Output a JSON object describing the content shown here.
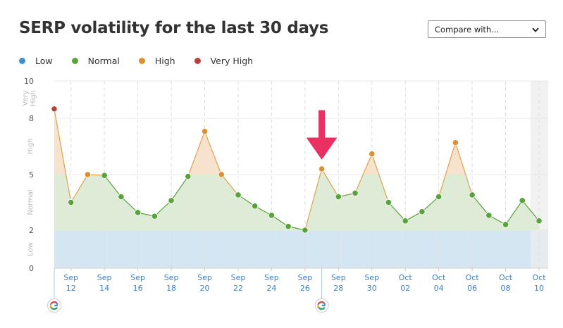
{
  "page": {
    "title": "SERP volatility for the last 30 days",
    "compare_label": "Compare with..."
  },
  "legend": [
    {
      "label": "Low",
      "color": "#3c8fd0"
    },
    {
      "label": "Normal",
      "color": "#5aa33c"
    },
    {
      "label": "High",
      "color": "#e08f2c"
    },
    {
      "label": "Very High",
      "color": "#b8423a"
    }
  ],
  "chart_data": {
    "type": "area",
    "title": "SERP volatility for the last 30 days",
    "ylim": [
      0,
      10
    ],
    "y_ticks": [
      "0",
      "2",
      "5",
      "8",
      "10"
    ],
    "bands": [
      {
        "label": "Low",
        "from": 0,
        "to": 2,
        "color": "#d5e6f3"
      },
      {
        "label": "Normal",
        "from": 2,
        "to": 5,
        "color": "#deebd6"
      },
      {
        "label": "High",
        "from": 5,
        "to": 8,
        "color": "#f7e3cd"
      },
      {
        "label": "Very High",
        "from": 8,
        "to": 10,
        "color": "#f0d8d6"
      }
    ],
    "x_tick_labels": [
      [
        "Sep",
        "12"
      ],
      [
        "Sep",
        "14"
      ],
      [
        "Sep",
        "16"
      ],
      [
        "Sep",
        "18"
      ],
      [
        "Sep",
        "20"
      ],
      [
        "Sep",
        "22"
      ],
      [
        "Sep",
        "24"
      ],
      [
        "Sep",
        "26"
      ],
      [
        "Sep",
        "28"
      ],
      [
        "Sep",
        "30"
      ],
      [
        "Oct",
        "02"
      ],
      [
        "Oct",
        "04"
      ],
      [
        "Oct",
        "06"
      ],
      [
        "Oct",
        "08"
      ],
      [
        "Oct",
        "10"
      ]
    ],
    "x": [
      "Sep 11",
      "Sep 12",
      "Sep 13",
      "Sep 14",
      "Sep 15",
      "Sep 16",
      "Sep 17",
      "Sep 18",
      "Sep 19",
      "Sep 20",
      "Sep 21",
      "Sep 22",
      "Sep 23",
      "Sep 24",
      "Sep 25",
      "Sep 26",
      "Sep 27",
      "Sep 28",
      "Sep 29",
      "Sep 30",
      "Oct 01",
      "Oct 02",
      "Oct 03",
      "Oct 04",
      "Oct 05",
      "Oct 06",
      "Oct 07",
      "Oct 08",
      "Oct 09",
      "Oct 10"
    ],
    "series": [
      {
        "values": [
          8.5,
          3.5,
          5.0,
          4.95,
          3.8,
          2.95,
          2.75,
          3.6,
          4.9,
          7.3,
          5.0,
          3.9,
          3.3,
          2.8,
          2.2,
          2.0,
          5.3,
          3.8,
          4.0,
          6.1,
          3.5,
          2.5,
          3.0,
          3.8,
          6.7,
          3.9,
          2.8,
          2.3,
          3.6,
          2.5
        ],
        "levels": [
          "Very High",
          "Normal",
          "High",
          "Normal",
          "Normal",
          "Normal",
          "Normal",
          "Normal",
          "Normal",
          "High",
          "High",
          "Normal",
          "Normal",
          "Normal",
          "Normal",
          "Normal",
          "High",
          "Normal",
          "Normal",
          "High",
          "Normal",
          "Normal",
          "Normal",
          "Normal",
          "High",
          "Normal",
          "Normal",
          "Normal",
          "Normal",
          "Normal"
        ]
      }
    ],
    "google_update_markers": [
      "Sep 11",
      "Sep 27"
    ],
    "annotation_arrow_at": "Sep 27",
    "shaded_region": "Oct 10",
    "grid": true
  }
}
